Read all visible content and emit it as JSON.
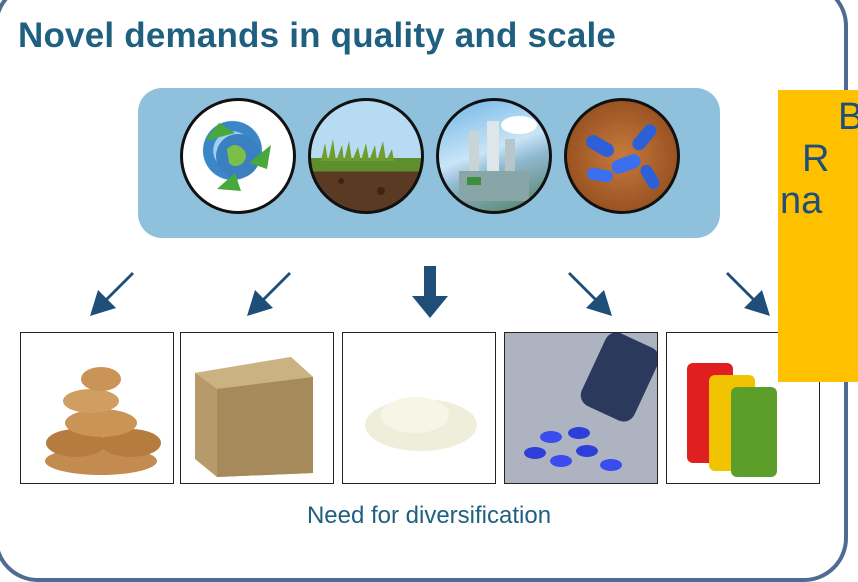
{
  "title": "Novel demands in quality and scale",
  "caption": "Need for diversification",
  "callout": {
    "line1": "B",
    "line2": "R",
    "line3": "na"
  },
  "sources": [
    {
      "icon": "recycling-globe-icon"
    },
    {
      "icon": "grass-soil-icon"
    },
    {
      "icon": "refinery-icon"
    },
    {
      "icon": "bacteria-icon"
    }
  ],
  "products": [
    {
      "icon": "bread-loaves-icon"
    },
    {
      "icon": "particle-board-icon"
    },
    {
      "icon": "white-powder-icon"
    },
    {
      "icon": "blue-pills-icon"
    },
    {
      "icon": "fuel-canisters-icon"
    }
  ],
  "colors": {
    "title": "#1f5f7f",
    "panel": "#8fc0dc",
    "arrow": "#1f4e79",
    "callout": "#ffc000",
    "frame": "#4f6b91"
  }
}
